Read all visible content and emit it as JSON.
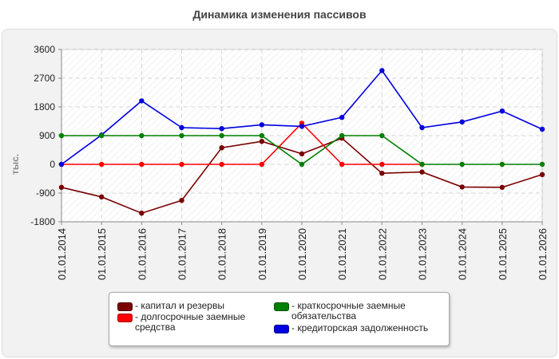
{
  "chart_data": {
    "type": "line",
    "title": "Динамика изменения пассивов",
    "ylabel": "тыс.",
    "xlabel": "",
    "categories": [
      "01.01.2014",
      "01.01.2015",
      "01.01.2016",
      "01.01.2017",
      "01.01.2018",
      "01.01.2019",
      "01.01.2020",
      "01.01.2021",
      "01.01.2022",
      "01.01.2023",
      "01.01.2024",
      "01.01.2025",
      "01.01.2026"
    ],
    "ylim": [
      -1800,
      3600
    ],
    "yticks": [
      "3600",
      "2700",
      "1800",
      "900",
      "0",
      "-900",
      "-1800"
    ],
    "grid": true,
    "legend_position": "bottom",
    "series": [
      {
        "name": "капитал и резервы",
        "color": "#7a0000",
        "values": [
          -720,
          -1020,
          -1530,
          -1130,
          520,
          720,
          330,
          820,
          -280,
          -240,
          -710,
          -720,
          -320
        ]
      },
      {
        "name": "долгосрочные заемные средства",
        "color": "#ff0000",
        "values": [
          0,
          0,
          0,
          0,
          0,
          0,
          1290,
          0,
          0,
          0,
          null,
          null,
          null
        ]
      },
      {
        "name": "краткосрочные заемные обязательства",
        "color": "#008000",
        "values": [
          900,
          900,
          900,
          900,
          900,
          900,
          0,
          900,
          900,
          0,
          0,
          0,
          0
        ]
      },
      {
        "name": "кредиторская задолженность",
        "color": "#0000e0",
        "values": [
          0,
          920,
          1990,
          1150,
          1120,
          1240,
          1190,
          1470,
          2940,
          1150,
          1330,
          1670,
          1100
        ]
      }
    ]
  }
}
